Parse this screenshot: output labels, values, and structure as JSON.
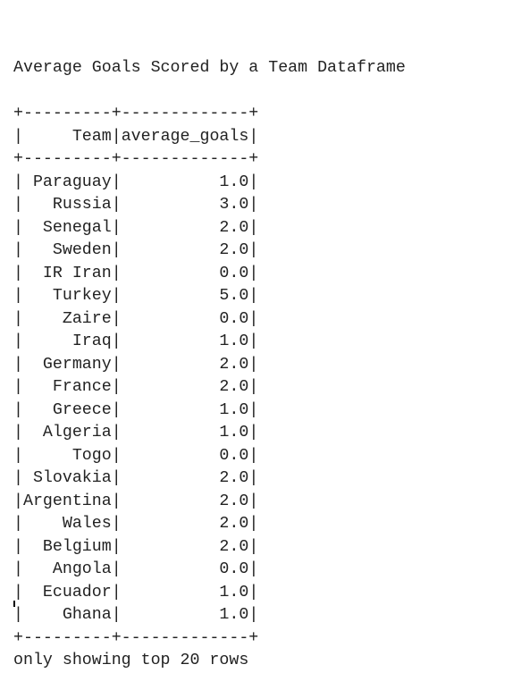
{
  "title": "Average Goals Scored by a Team Dataframe",
  "table": {
    "border": "+---------+-------------+",
    "separator": "|",
    "columns": [
      "Team",
      "average_goals"
    ],
    "rows": [
      [
        "Paraguay",
        "1.0"
      ],
      [
        "Russia",
        "3.0"
      ],
      [
        "Senegal",
        "2.0"
      ],
      [
        "Sweden",
        "2.0"
      ],
      [
        "IR Iran",
        "0.0"
      ],
      [
        "Turkey",
        "5.0"
      ],
      [
        "Zaire",
        "0.0"
      ],
      [
        "Iraq",
        "1.0"
      ],
      [
        "Germany",
        "2.0"
      ],
      [
        "France",
        "2.0"
      ],
      [
        "Greece",
        "1.0"
      ],
      [
        "Algeria",
        "1.0"
      ],
      [
        "Togo",
        "0.0"
      ],
      [
        "Slovakia",
        "2.0"
      ],
      [
        "Argentina",
        "2.0"
      ],
      [
        "Wales",
        "2.0"
      ],
      [
        "Belgium",
        "2.0"
      ],
      [
        "Angola",
        "0.0"
      ],
      [
        "Ecuador",
        "1.0"
      ],
      [
        "Ghana",
        "1.0"
      ]
    ]
  },
  "footer": "only showing top 20 rows"
}
